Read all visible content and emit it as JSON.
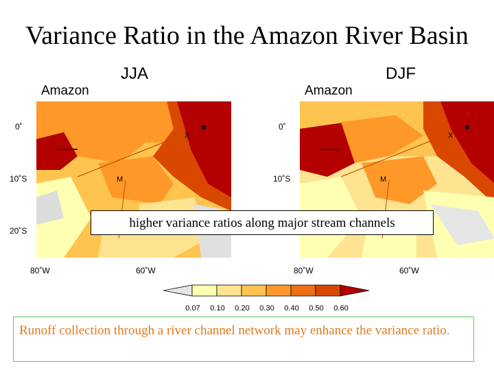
{
  "title": "Variance Ratio in the Amazon River Basin",
  "panels": [
    {
      "season": "JJA",
      "region": "Amazon"
    },
    {
      "season": "DJF",
      "region": "Amazon"
    }
  ],
  "lat_ticks": [
    "0˚",
    "10˚S",
    "20˚S"
  ],
  "lon_ticks": [
    "80˚W",
    "60˚W"
  ],
  "markers": {
    "x": "X",
    "m": "M"
  },
  "callout": "higher variance ratios along major stream channels",
  "colorbar": {
    "labels": [
      "0.07",
      "0.10",
      "0.20",
      "0.30",
      "0.40",
      "0.50",
      "0.60"
    ],
    "colors": [
      "#e6e6e6",
      "#ffffb2",
      "#fee391",
      "#fec44f",
      "#fe9929",
      "#ec7014",
      "#d94801",
      "#b30000"
    ]
  },
  "note": "Runoff collection through a river channel network may enhance the variance ratio."
}
